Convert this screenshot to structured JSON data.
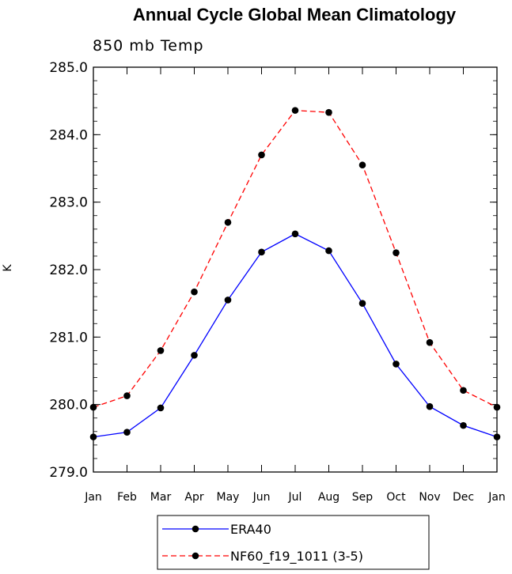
{
  "chart_data": {
    "type": "line",
    "title": "Annual Cycle Global Mean Climatology",
    "subtitle": "850 mb Temp",
    "ylabel": "K",
    "xlabel": "",
    "categories": [
      "Jan",
      "Feb",
      "Mar",
      "Apr",
      "May",
      "Jun",
      "Jul",
      "Aug",
      "Sep",
      "Oct",
      "Nov",
      "Dec",
      "Jan"
    ],
    "yticks": [
      "279.0",
      "280.0",
      "281.0",
      "282.0",
      "283.0",
      "284.0",
      "285.0"
    ],
    "ylim": [
      279.0,
      285.0
    ],
    "grid": false,
    "legend_position": "bottom",
    "series": [
      {
        "name": "ERA40",
        "color": "#0000ff",
        "dash": "solid",
        "values": [
          279.52,
          279.59,
          279.95,
          280.73,
          281.55,
          282.26,
          282.53,
          282.28,
          281.5,
          280.6,
          279.97,
          279.69,
          279.52
        ]
      },
      {
        "name": "NF60_f19_1011 (3-5)",
        "color": "#ff0000",
        "dash": "dashed",
        "values": [
          279.96,
          280.13,
          280.8,
          281.67,
          282.7,
          283.7,
          284.36,
          284.33,
          283.55,
          282.25,
          280.92,
          280.21,
          279.96
        ]
      }
    ]
  }
}
